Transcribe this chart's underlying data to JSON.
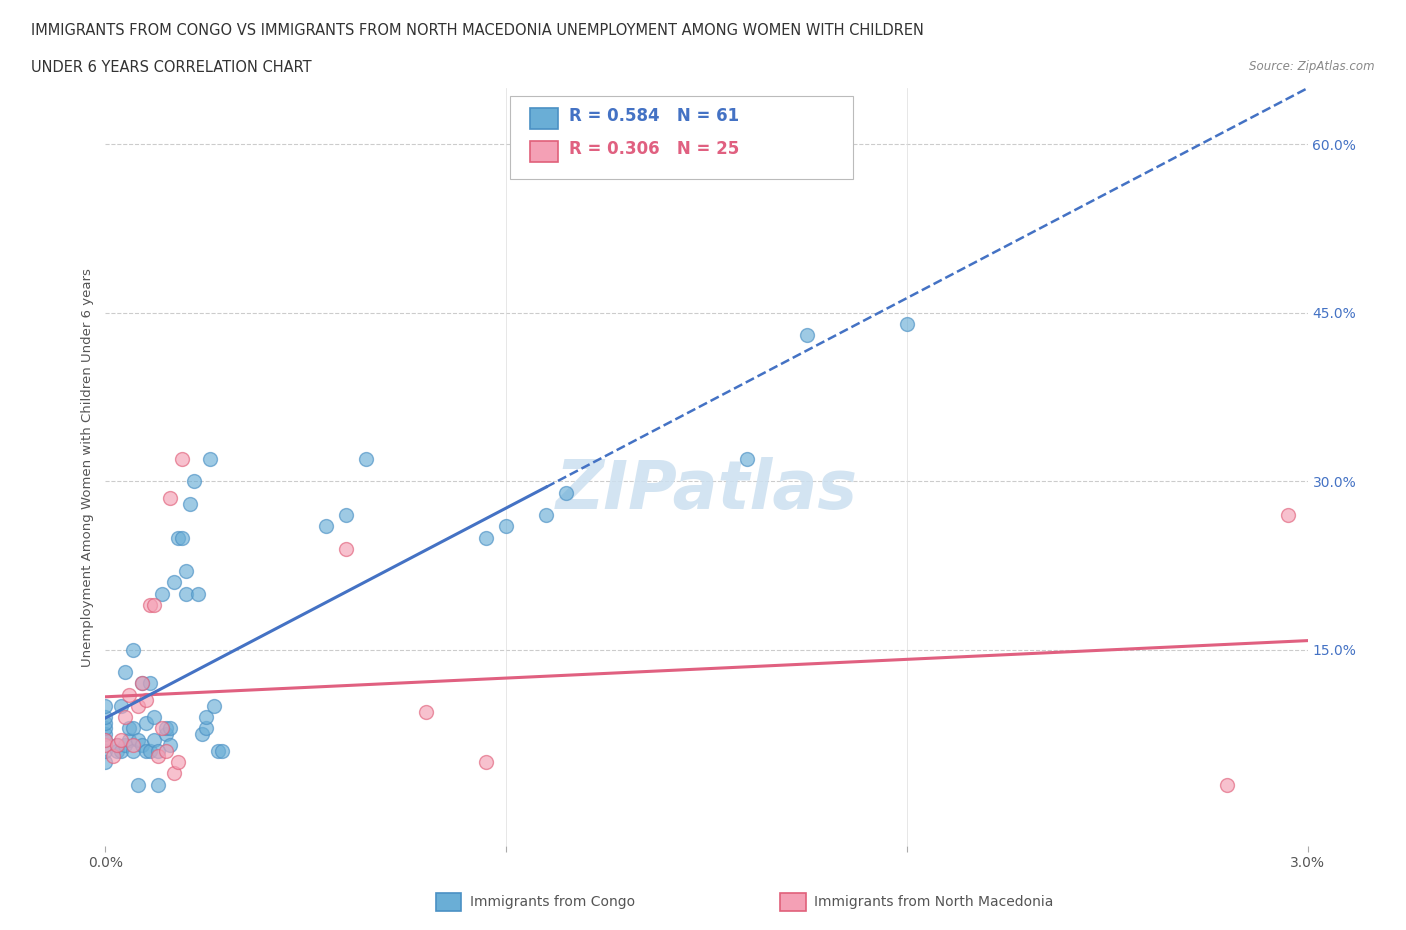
{
  "title_line1": "IMMIGRANTS FROM CONGO VS IMMIGRANTS FROM NORTH MACEDONIA UNEMPLOYMENT AMONG WOMEN WITH CHILDREN",
  "title_line2": "UNDER 6 YEARS CORRELATION CHART",
  "source": "Source: ZipAtlas.com",
  "ylabel": "Unemployment Among Women with Children Under 6 years",
  "congo_color": "#6aaed6",
  "congo_edge": "#4a90c4",
  "macedonia_color": "#f4a0b5",
  "macedonia_edge": "#e0607a",
  "congo_line_color": "#4472c4",
  "macedonia_line_color": "#e06080",
  "background_color": "#ffffff",
  "xlim": [
    0.0,
    0.03
  ],
  "ylim": [
    -0.025,
    0.65
  ],
  "congo_R": 0.584,
  "congo_N": 61,
  "macedonia_R": 0.306,
  "macedonia_N": 25,
  "congo_scatter_x": [
    0.0,
    0.0,
    0.0,
    0.0,
    0.0,
    0.0,
    0.0,
    0.0,
    0.0003,
    0.0003,
    0.0004,
    0.0004,
    0.0005,
    0.0005,
    0.0006,
    0.0006,
    0.0007,
    0.0007,
    0.0007,
    0.0008,
    0.0008,
    0.0009,
    0.0009,
    0.001,
    0.001,
    0.0011,
    0.0011,
    0.0012,
    0.0012,
    0.0013,
    0.0013,
    0.0014,
    0.0015,
    0.0015,
    0.0016,
    0.0016,
    0.0017,
    0.0018,
    0.0019,
    0.002,
    0.002,
    0.0021,
    0.0022,
    0.0023,
    0.0024,
    0.0025,
    0.0025,
    0.0026,
    0.0027,
    0.0028,
    0.0029,
    0.0055,
    0.006,
    0.0065,
    0.0095,
    0.01,
    0.011,
    0.0115,
    0.016,
    0.0175,
    0.02
  ],
  "congo_scatter_y": [
    0.05,
    0.06,
    0.07,
    0.075,
    0.08,
    0.085,
    0.09,
    0.1,
    0.06,
    0.065,
    0.06,
    0.1,
    0.065,
    0.13,
    0.07,
    0.08,
    0.06,
    0.08,
    0.15,
    0.03,
    0.07,
    0.065,
    0.12,
    0.06,
    0.085,
    0.06,
    0.12,
    0.07,
    0.09,
    0.03,
    0.06,
    0.2,
    0.075,
    0.08,
    0.065,
    0.08,
    0.21,
    0.25,
    0.25,
    0.2,
    0.22,
    0.28,
    0.3,
    0.2,
    0.075,
    0.08,
    0.09,
    0.32,
    0.1,
    0.06,
    0.06,
    0.26,
    0.27,
    0.32,
    0.25,
    0.26,
    0.27,
    0.29,
    0.32,
    0.43,
    0.44
  ],
  "macedonia_scatter_x": [
    0.0,
    0.0,
    0.0002,
    0.0003,
    0.0004,
    0.0005,
    0.0006,
    0.0007,
    0.0008,
    0.0009,
    0.001,
    0.0011,
    0.0012,
    0.0013,
    0.0014,
    0.0015,
    0.0016,
    0.0017,
    0.0018,
    0.0019,
    0.006,
    0.008,
    0.0095,
    0.028,
    0.0295
  ],
  "macedonia_scatter_y": [
    0.065,
    0.07,
    0.055,
    0.065,
    0.07,
    0.09,
    0.11,
    0.065,
    0.1,
    0.12,
    0.105,
    0.19,
    0.19,
    0.055,
    0.08,
    0.06,
    0.285,
    0.04,
    0.05,
    0.32,
    0.24,
    0.095,
    0.05,
    0.03,
    0.27
  ]
}
